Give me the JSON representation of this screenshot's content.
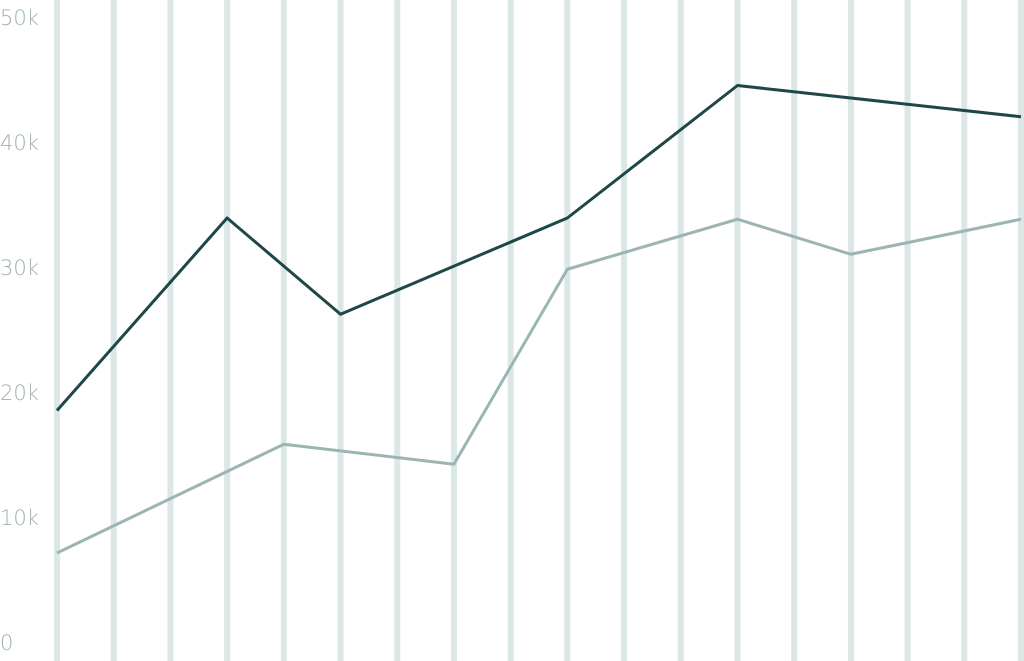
{
  "chart_data": {
    "type": "line",
    "xlim": [
      0,
      17
    ],
    "xticks": [
      0,
      1,
      2,
      3,
      4,
      5,
      6,
      7,
      8,
      9,
      10,
      11,
      12,
      13,
      14,
      15,
      16,
      17
    ],
    "ylim": [
      0,
      50000
    ],
    "yticks": [
      0,
      {
        "value": 10000,
        "label": "10k"
      },
      {
        "value": 20000,
        "label": "20k"
      },
      {
        "value": 30000,
        "label": "30k"
      },
      {
        "value": 40000,
        "label": "40k"
      },
      {
        "value": 50000,
        "label": "50k"
      }
    ],
    "grid": true,
    "grid_color": "#dbe6e6",
    "series": [
      {
        "color": "#1f4747",
        "x": [
          0,
          3,
          5,
          9,
          12,
          17
        ],
        "values": [
          18600,
          34000,
          26300,
          34000,
          44600,
          42100
        ]
      },
      {
        "color": "#9bb6b2",
        "x": [
          0,
          4,
          7,
          9,
          12,
          14,
          17
        ],
        "values": [
          7200,
          15900,
          14300,
          29900,
          33900,
          31100,
          33900
        ]
      }
    ]
  }
}
